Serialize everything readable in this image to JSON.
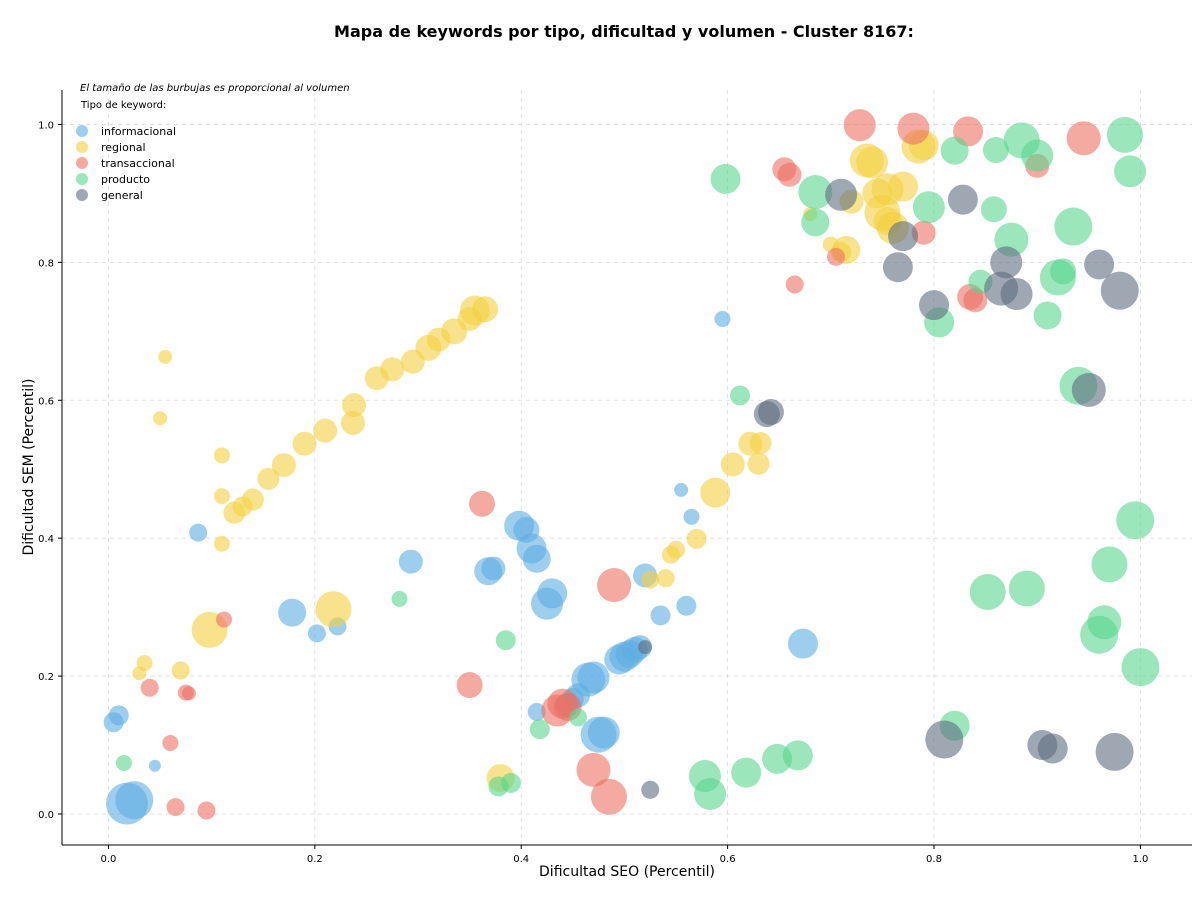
{
  "chart_data": {
    "type": "scatter",
    "title": "Mapa de keywords por tipo, dificultad y volumen - Cluster 8167:",
    "xlabel": "Dificultad SEO (Percentil)",
    "ylabel": "Dificultad SEM (Percentil)",
    "xlim": [
      -0.045,
      1.05
    ],
    "ylim": [
      -0.045,
      1.05
    ],
    "xticks": [
      "0.0",
      "0.2",
      "0.4",
      "0.6",
      "0.8",
      "1.0"
    ],
    "yticks": [
      "0.0",
      "0.2",
      "0.4",
      "0.6",
      "0.8",
      "1.0"
    ],
    "grid": true,
    "legend_position": "top-left",
    "note": "El tamaño de las burbujas es proporcional al volumen",
    "legend_title": "Tipo de keyword:",
    "series": [
      {
        "name": "informacional",
        "color": "#5DADE2",
        "points": [
          [
            0.005,
            0.133,
            10
          ],
          [
            0.01,
            0.143,
            10
          ],
          [
            0.018,
            0.015,
            21
          ],
          [
            0.025,
            0.02,
            19
          ],
          [
            0.045,
            0.07,
            6
          ],
          [
            0.087,
            0.408,
            9
          ],
          [
            0.178,
            0.292,
            14
          ],
          [
            0.202,
            0.262,
            9
          ],
          [
            0.222,
            0.272,
            9
          ],
          [
            0.293,
            0.366,
            12
          ],
          [
            0.368,
            0.352,
            14
          ],
          [
            0.373,
            0.356,
            12
          ],
          [
            0.398,
            0.418,
            15
          ],
          [
            0.405,
            0.412,
            13
          ],
          [
            0.41,
            0.385,
            15
          ],
          [
            0.415,
            0.37,
            14
          ],
          [
            0.415,
            0.148,
            9
          ],
          [
            0.425,
            0.305,
            16
          ],
          [
            0.43,
            0.32,
            15
          ],
          [
            0.445,
            0.158,
            12
          ],
          [
            0.45,
            0.167,
            11
          ],
          [
            0.455,
            0.172,
            12
          ],
          [
            0.465,
            0.195,
            17
          ],
          [
            0.47,
            0.198,
            16
          ],
          [
            0.475,
            0.115,
            18
          ],
          [
            0.48,
            0.118,
            16
          ],
          [
            0.495,
            0.224,
            15
          ],
          [
            0.5,
            0.228,
            15
          ],
          [
            0.505,
            0.232,
            14
          ],
          [
            0.51,
            0.238,
            13
          ],
          [
            0.515,
            0.242,
            12
          ],
          [
            0.52,
            0.346,
            12
          ],
          [
            0.535,
            0.288,
            10
          ],
          [
            0.555,
            0.47,
            7
          ],
          [
            0.56,
            0.302,
            10
          ],
          [
            0.565,
            0.431,
            8
          ],
          [
            0.595,
            0.718,
            8
          ],
          [
            0.673,
            0.247,
            15
          ]
        ]
      },
      {
        "name": "regional",
        "color": "#F4D03F",
        "points": [
          [
            0.03,
            0.204,
            7
          ],
          [
            0.035,
            0.219,
            8
          ],
          [
            0.05,
            0.574,
            7
          ],
          [
            0.055,
            0.663,
            7
          ],
          [
            0.07,
            0.208,
            9
          ],
          [
            0.098,
            0.267,
            18
          ],
          [
            0.11,
            0.52,
            8
          ],
          [
            0.11,
            0.461,
            8
          ],
          [
            0.11,
            0.392,
            8
          ],
          [
            0.122,
            0.437,
            11
          ],
          [
            0.13,
            0.446,
            10
          ],
          [
            0.14,
            0.456,
            11
          ],
          [
            0.155,
            0.486,
            11
          ],
          [
            0.17,
            0.506,
            12
          ],
          [
            0.19,
            0.537,
            12
          ],
          [
            0.21,
            0.556,
            12
          ],
          [
            0.218,
            0.297,
            18
          ],
          [
            0.237,
            0.567,
            12
          ],
          [
            0.238,
            0.593,
            12
          ],
          [
            0.26,
            0.632,
            12
          ],
          [
            0.275,
            0.645,
            12
          ],
          [
            0.295,
            0.656,
            12
          ],
          [
            0.31,
            0.676,
            13
          ],
          [
            0.32,
            0.688,
            12
          ],
          [
            0.335,
            0.7,
            13
          ],
          [
            0.35,
            0.718,
            12
          ],
          [
            0.355,
            0.73,
            15
          ],
          [
            0.365,
            0.732,
            13
          ],
          [
            0.38,
            0.052,
            14
          ],
          [
            0.525,
            0.34,
            9
          ],
          [
            0.54,
            0.342,
            9
          ],
          [
            0.545,
            0.376,
            9
          ],
          [
            0.55,
            0.383,
            9
          ],
          [
            0.57,
            0.399,
            10
          ],
          [
            0.588,
            0.466,
            15
          ],
          [
            0.605,
            0.507,
            12
          ],
          [
            0.622,
            0.537,
            12
          ],
          [
            0.632,
            0.538,
            11
          ],
          [
            0.63,
            0.508,
            11
          ],
          [
            0.68,
            0.87,
            7
          ],
          [
            0.7,
            0.826,
            8
          ],
          [
            0.71,
            0.815,
            10
          ],
          [
            0.715,
            0.818,
            14
          ],
          [
            0.72,
            0.888,
            12
          ],
          [
            0.735,
            0.948,
            17
          ],
          [
            0.74,
            0.945,
            16
          ],
          [
            0.75,
            0.872,
            18
          ],
          [
            0.755,
            0.906,
            16
          ],
          [
            0.76,
            0.85,
            16
          ],
          [
            0.77,
            0.91,
            15
          ],
          [
            0.785,
            0.968,
            17
          ],
          [
            0.79,
            0.97,
            15
          ],
          [
            0.745,
            0.9,
            15
          ],
          [
            0.755,
            0.86,
            14
          ]
        ]
      },
      {
        "name": "transaccional",
        "color": "#EC7063",
        "points": [
          [
            0.04,
            0.183,
            9
          ],
          [
            0.06,
            0.103,
            8
          ],
          [
            0.065,
            0.01,
            9
          ],
          [
            0.075,
            0.176,
            8
          ],
          [
            0.078,
            0.175,
            7
          ],
          [
            0.095,
            0.005,
            9
          ],
          [
            0.112,
            0.282,
            8
          ],
          [
            0.35,
            0.187,
            13
          ],
          [
            0.362,
            0.45,
            13
          ],
          [
            0.435,
            0.15,
            16
          ],
          [
            0.445,
            0.155,
            14
          ],
          [
            0.44,
            0.16,
            15
          ],
          [
            0.47,
            0.064,
            17
          ],
          [
            0.485,
            0.025,
            18
          ],
          [
            0.49,
            0.332,
            17
          ],
          [
            0.655,
            0.935,
            12
          ],
          [
            0.66,
            0.927,
            12
          ],
          [
            0.665,
            0.768,
            9
          ],
          [
            0.705,
            0.808,
            9
          ],
          [
            0.728,
            0.999,
            16
          ],
          [
            0.78,
            0.994,
            16
          ],
          [
            0.79,
            0.843,
            12
          ],
          [
            0.833,
            0.99,
            15
          ],
          [
            0.835,
            0.75,
            13
          ],
          [
            0.84,
            0.745,
            12
          ],
          [
            0.9,
            0.94,
            12
          ],
          [
            0.945,
            0.98,
            17
          ]
        ]
      },
      {
        "name": "producto",
        "color": "#58D68D",
        "points": [
          [
            0.015,
            0.074,
            8
          ],
          [
            0.282,
            0.312,
            8
          ],
          [
            0.378,
            0.04,
            10
          ],
          [
            0.385,
            0.252,
            10
          ],
          [
            0.39,
            0.045,
            10
          ],
          [
            0.418,
            0.123,
            10
          ],
          [
            0.455,
            0.14,
            9
          ],
          [
            0.578,
            0.055,
            16
          ],
          [
            0.583,
            0.029,
            16
          ],
          [
            0.598,
            0.921,
            15
          ],
          [
            0.612,
            0.607,
            10
          ],
          [
            0.618,
            0.06,
            15
          ],
          [
            0.648,
            0.08,
            15
          ],
          [
            0.668,
            0.085,
            15
          ],
          [
            0.685,
            0.902,
            17
          ],
          [
            0.685,
            0.858,
            14
          ],
          [
            0.795,
            0.88,
            16
          ],
          [
            0.82,
            0.128,
            15
          ],
          [
            0.805,
            0.713,
            15
          ],
          [
            0.82,
            0.962,
            14
          ],
          [
            0.845,
            0.772,
            12
          ],
          [
            0.852,
            0.322,
            18
          ],
          [
            0.86,
            0.963,
            13
          ],
          [
            0.858,
            0.877,
            13
          ],
          [
            0.875,
            0.833,
            17
          ],
          [
            0.885,
            0.977,
            18
          ],
          [
            0.89,
            0.327,
            18
          ],
          [
            0.9,
            0.955,
            16
          ],
          [
            0.91,
            0.723,
            14
          ],
          [
            0.92,
            0.778,
            18
          ],
          [
            0.925,
            0.787,
            13
          ],
          [
            0.935,
            0.852,
            19
          ],
          [
            0.94,
            0.621,
            19
          ],
          [
            0.96,
            0.26,
            19
          ],
          [
            0.965,
            0.278,
            17
          ],
          [
            0.97,
            0.362,
            18
          ],
          [
            0.985,
            0.985,
            18
          ],
          [
            0.99,
            0.932,
            16
          ],
          [
            0.995,
            0.426,
            19
          ],
          [
            1.0,
            0.213,
            19
          ]
        ]
      },
      {
        "name": "general",
        "color": "#5D6D7E",
        "points": [
          [
            0.525,
            0.035,
            9
          ],
          [
            0.52,
            0.242,
            7
          ],
          [
            0.638,
            0.58,
            13
          ],
          [
            0.642,
            0.583,
            13
          ],
          [
            0.71,
            0.898,
            16
          ],
          [
            0.765,
            0.793,
            15
          ],
          [
            0.77,
            0.838,
            15
          ],
          [
            0.8,
            0.738,
            15
          ],
          [
            0.81,
            0.108,
            19
          ],
          [
            0.828,
            0.891,
            15
          ],
          [
            0.865,
            0.762,
            17
          ],
          [
            0.87,
            0.8,
            16
          ],
          [
            0.88,
            0.754,
            16
          ],
          [
            0.905,
            0.1,
            15
          ],
          [
            0.915,
            0.095,
            15
          ],
          [
            0.95,
            0.615,
            17
          ],
          [
            0.96,
            0.797,
            15
          ],
          [
            0.975,
            0.09,
            19
          ],
          [
            0.98,
            0.759,
            19
          ]
        ]
      }
    ]
  }
}
